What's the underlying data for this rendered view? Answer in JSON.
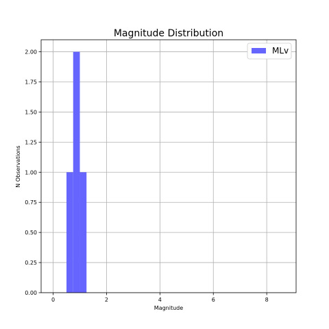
{
  "chart_data": {
    "type": "bar",
    "title": "Magnitude Distribution",
    "xlabel": "Magnitude",
    "ylabel": "N Observations",
    "xlim": [
      -0.45,
      9.1
    ],
    "ylim": [
      0,
      2.1
    ],
    "xticks": [
      0,
      2,
      4,
      6,
      8
    ],
    "xtick_labels": [
      "0",
      "2",
      "4",
      "6",
      "8"
    ],
    "yticks": [
      0,
      0.25,
      0.5,
      0.75,
      1.0,
      1.25,
      1.5,
      1.75,
      2.0
    ],
    "ytick_labels": [
      "0.00",
      "0.25",
      "0.50",
      "0.75",
      "1.00",
      "1.25",
      "1.50",
      "1.75",
      "2.00"
    ],
    "grid": true,
    "legend_position": "top-right",
    "series": [
      {
        "name": "MLv",
        "color": "#6666ff",
        "bins": [
          {
            "x0": 0.5,
            "x1": 0.75,
            "value": 1
          },
          {
            "x0": 0.75,
            "x1": 1.0,
            "value": 2
          },
          {
            "x0": 1.0,
            "x1": 1.25,
            "value": 1
          }
        ]
      }
    ]
  }
}
